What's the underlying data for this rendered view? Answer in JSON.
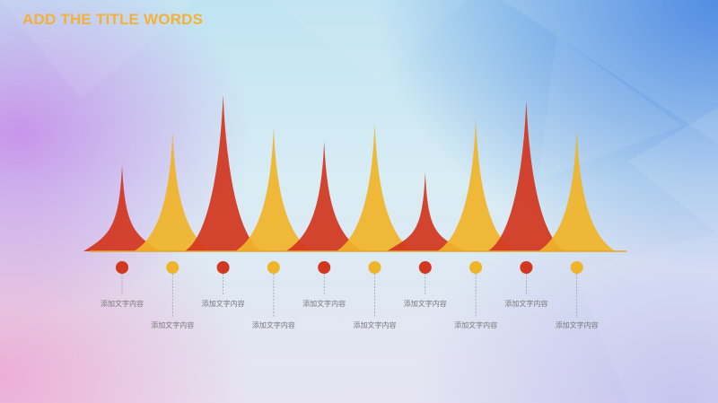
{
  "slide": {
    "title": "ADD THE TITLE WORDS"
  },
  "colors": {
    "red": "#d2371f",
    "yellow": "#f0b42a"
  },
  "peaks": [
    {
      "color": "red",
      "height": 0.45,
      "caption": "添加文字内容"
    },
    {
      "color": "yellow",
      "height": 0.62,
      "caption": "添加文字内容"
    },
    {
      "color": "red",
      "height": 0.81,
      "caption": "添加文字内容"
    },
    {
      "color": "yellow",
      "height": 0.64,
      "caption": "添加文字内容"
    },
    {
      "color": "red",
      "height": 0.57,
      "caption": "添加文字内容"
    },
    {
      "color": "yellow",
      "height": 0.66,
      "caption": "添加文字内容"
    },
    {
      "color": "red",
      "height": 0.41,
      "caption": "添加文字内容"
    },
    {
      "color": "yellow",
      "height": 0.68,
      "caption": "添加文字内容"
    },
    {
      "color": "red",
      "height": 0.78,
      "caption": "添加文字内容"
    },
    {
      "color": "yellow",
      "height": 0.63,
      "caption": "添加文字内容"
    }
  ]
}
